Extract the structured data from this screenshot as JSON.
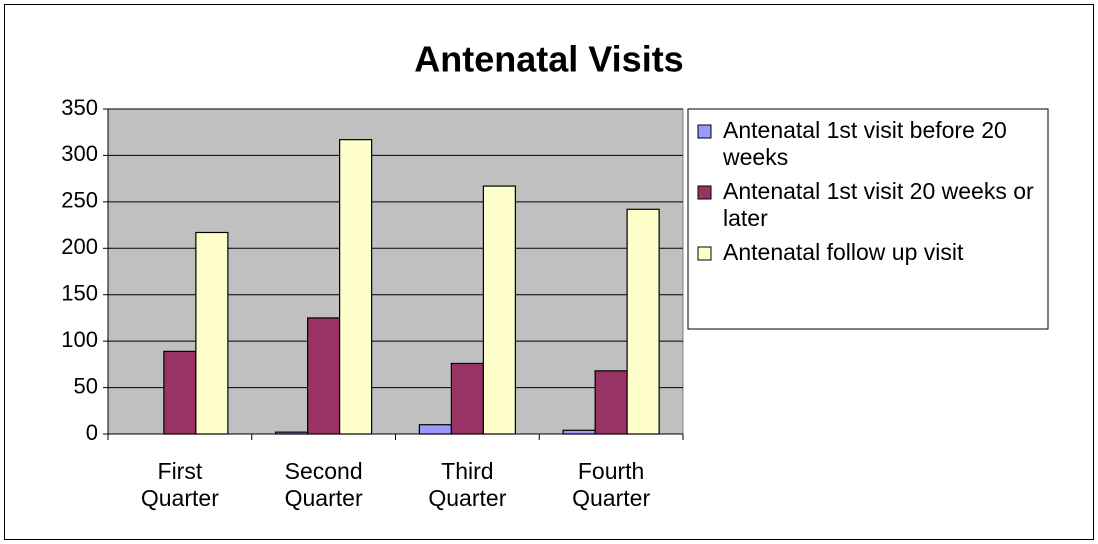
{
  "chart_data": {
    "type": "bar",
    "title": "Antenatal Visits",
    "categories": [
      "First Quarter",
      "Second Quarter",
      "Third Quarter",
      "Fourth Quarter"
    ],
    "series": [
      {
        "name": "Antenatal 1st visit before 20 weeks",
        "color": "#9999ff",
        "values": [
          0,
          2,
          10,
          4
        ]
      },
      {
        "name": "Antenatal 1st visit 20 weeks or later",
        "color": "#993366",
        "values": [
          89,
          125,
          76,
          68
        ]
      },
      {
        "name": "Antenatal follow up visit",
        "color": "#ffffcc",
        "values": [
          217,
          317,
          267,
          242
        ]
      }
    ],
    "ylim": [
      0,
      350
    ],
    "yticks": [
      0,
      50,
      100,
      150,
      200,
      250,
      300,
      350
    ],
    "grid": true,
    "legend": "right",
    "plot_background": "#c0c0c0"
  }
}
